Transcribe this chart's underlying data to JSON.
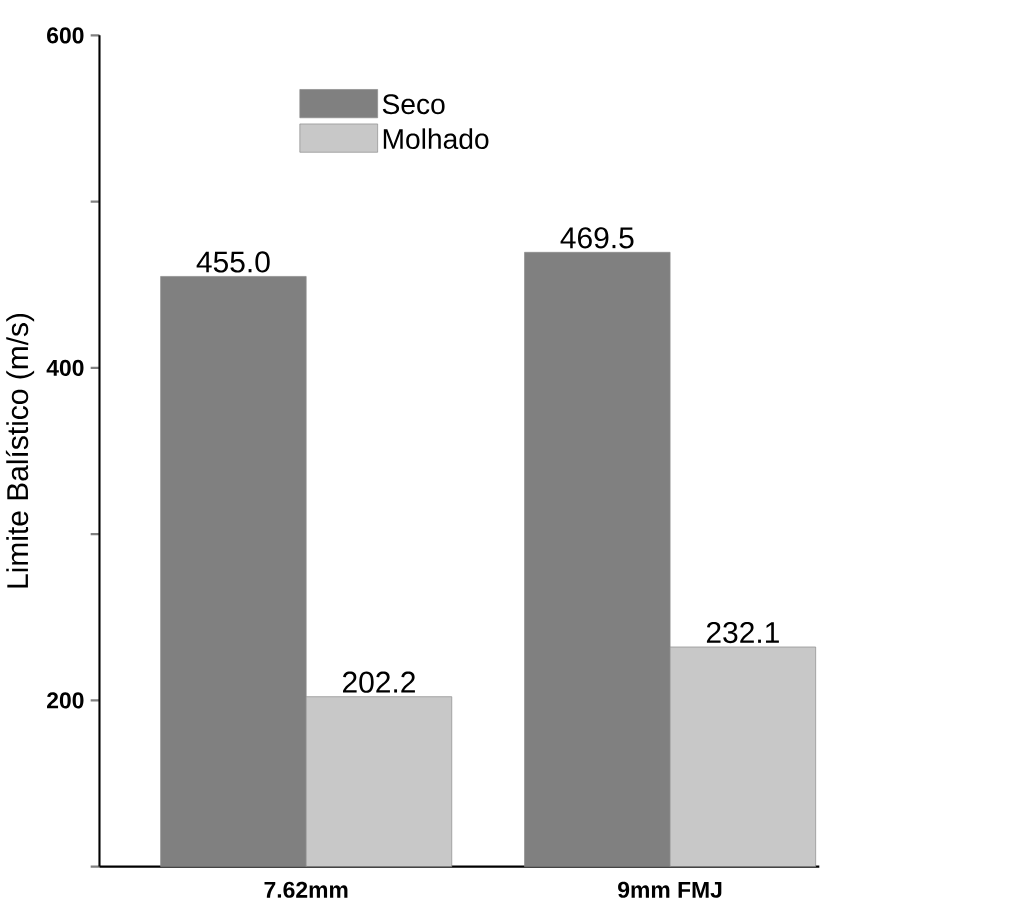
{
  "chart_data": {
    "type": "bar",
    "ylabel": "Limite Balístico (m/s)",
    "categories": [
      "7.62mm",
      "9mm FMJ"
    ],
    "series": [
      {
        "name": "Seco",
        "color": "#808080",
        "values": [
          455.0,
          469.5
        ],
        "value_labels": [
          "455.0",
          "469.5"
        ]
      },
      {
        "name": "Molhado",
        "color": "#c8c8c8",
        "values": [
          202.2,
          232.1
        ],
        "value_labels": [
          "202.2",
          "232.1"
        ]
      }
    ],
    "ylim": [
      100,
      600
    ],
    "yticks": [
      {
        "value": 100,
        "label": null
      },
      200,
      {
        "value": 300,
        "label": null
      },
      400,
      {
        "value": 500,
        "label": null
      },
      600
    ],
    "legend": "top"
  }
}
